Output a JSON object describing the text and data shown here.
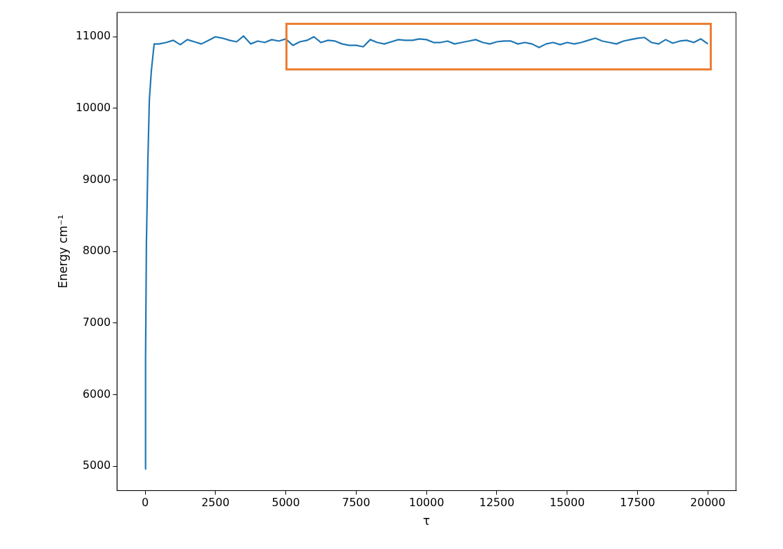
{
  "chart_data": {
    "type": "line",
    "xlabel": "τ",
    "ylabel": "Energy cm⁻¹",
    "xlim": [
      -1000,
      21000
    ],
    "xticks": [
      0,
      2500,
      5000,
      7500,
      10000,
      12500,
      15000,
      17500,
      20000
    ],
    "ylim": [
      4660,
      11340
    ],
    "yticks": [
      5000,
      6000,
      7000,
      8000,
      9000,
      10000,
      11000
    ],
    "grid": false,
    "legend": false,
    "marker": "none",
    "line_style": "solid",
    "series": [
      {
        "color": "#1f77b4",
        "x": [
          0,
          15,
          45,
          100,
          150,
          220,
          320,
          500,
          750,
          1000,
          1250,
          1500,
          1750,
          2000,
          2250,
          2500,
          2750,
          3000,
          3250,
          3500,
          3750,
          4000,
          4250,
          4500,
          4750,
          5000,
          5250,
          5500,
          5750,
          6000,
          6250,
          6500,
          6750,
          7000,
          7250,
          7500,
          7750,
          8000,
          8250,
          8500,
          8750,
          9000,
          9250,
          9500,
          9750,
          10000,
          10250,
          10500,
          10750,
          11000,
          11250,
          11500,
          11750,
          12000,
          12250,
          12500,
          12750,
          13000,
          13250,
          13500,
          13750,
          14000,
          14250,
          14500,
          14750,
          15000,
          15250,
          15500,
          15750,
          16000,
          16250,
          16500,
          16750,
          17000,
          17250,
          17500,
          17750,
          18000,
          18250,
          18500,
          18750,
          19000,
          19250,
          19500,
          19750,
          20000
        ],
        "values": [
          4960,
          6480,
          8100,
          9310,
          10120,
          10520,
          10900,
          10900,
          10920,
          10950,
          10890,
          10960,
          10930,
          10900,
          10950,
          11000,
          10980,
          10950,
          10930,
          11010,
          10900,
          10940,
          10920,
          10960,
          10940,
          10970,
          10880,
          10930,
          10950,
          11000,
          10920,
          10950,
          10940,
          10900,
          10880,
          10880,
          10860,
          10960,
          10920,
          10900,
          10930,
          10960,
          10950,
          10950,
          10970,
          10960,
          10920,
          10920,
          10940,
          10900,
          10920,
          10940,
          10960,
          10920,
          10900,
          10930,
          10940,
          10940,
          10900,
          10920,
          10900,
          10850,
          10900,
          10920,
          10890,
          10920,
          10900,
          10920,
          10950,
          10980,
          10940,
          10920,
          10900,
          10940,
          10960,
          10980,
          10990,
          10920,
          10900,
          10960,
          10910,
          10940,
          10950,
          10920,
          10970,
          10900
        ]
      }
    ]
  }
}
